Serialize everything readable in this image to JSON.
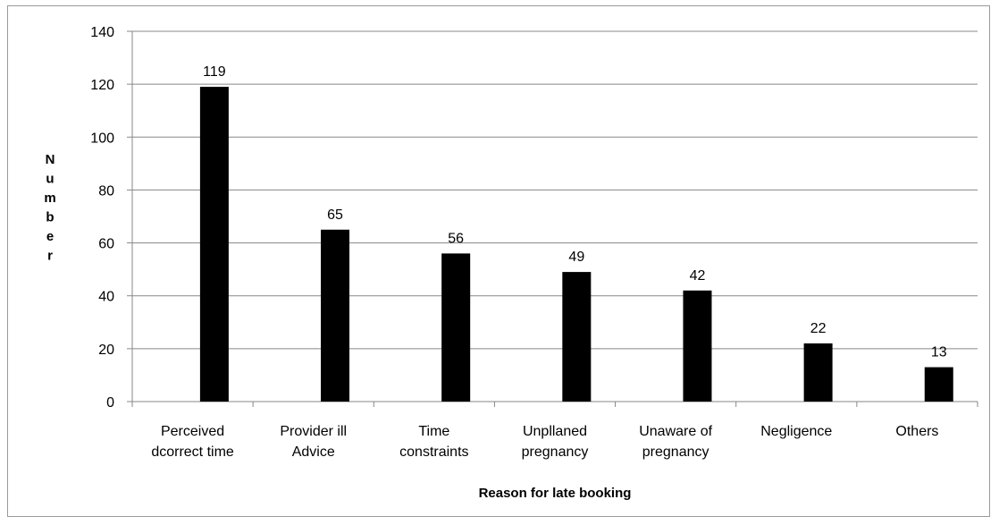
{
  "chart_data": {
    "type": "bar",
    "categories": [
      [
        "Perceived",
        "dcorrect time"
      ],
      [
        "Provider ill",
        "Advice"
      ],
      [
        "Time",
        "constraints"
      ],
      [
        "Unpllaned",
        "pregnancy"
      ],
      [
        "Unaware of",
        "pregnancy"
      ],
      [
        "Negligence"
      ],
      [
        "Others"
      ]
    ],
    "values": [
      119,
      65,
      56,
      49,
      42,
      22,
      13
    ],
    "data_labels": [
      "119",
      "65",
      "56",
      "49",
      "42",
      "22",
      "13"
    ],
    "xlabel": "Reason for late booking",
    "ylabel": "Number",
    "ylim": [
      0,
      140
    ],
    "yticks": [
      0,
      20,
      40,
      60,
      80,
      100,
      120,
      140
    ],
    "grid": true,
    "bar_color": "#000000",
    "grid_color": "#878787"
  }
}
